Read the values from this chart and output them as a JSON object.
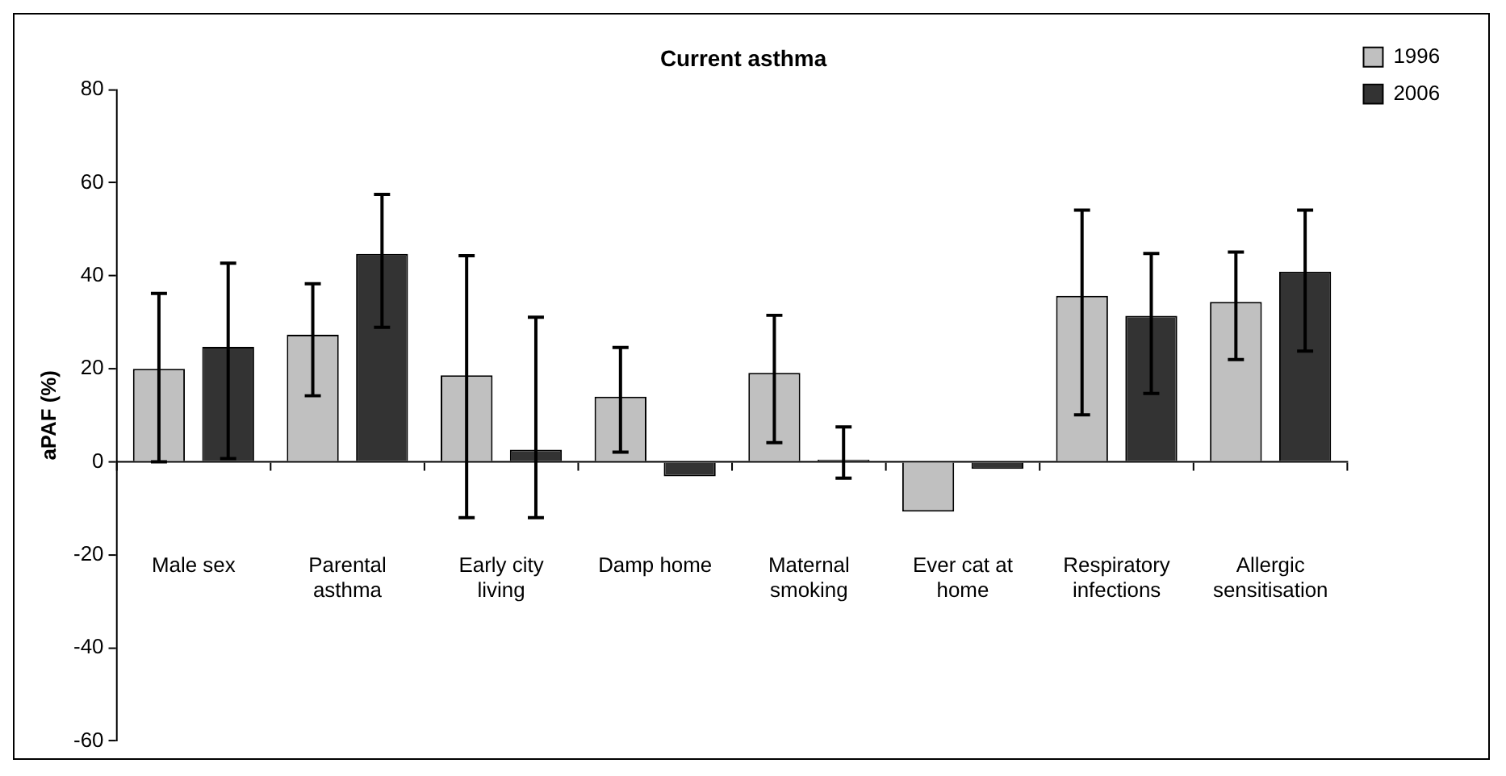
{
  "chart_data": {
    "type": "bar",
    "title": "Current asthma",
    "ylabel": "aPAF (%)",
    "categories": [
      "Male sex",
      "Parental asthma",
      "Early city living",
      "Damp home",
      "Maternal smoking",
      "Ever cat at home",
      "Respiratory infections",
      "Allergic sensitisation"
    ],
    "series": [
      {
        "name": "1996",
        "color": "#c0c0c0",
        "values": [
          20,
          27.3,
          18.6,
          14,
          19.1,
          -10.7,
          35.7,
          34.4
        ],
        "errors": [
          [
            0,
            36.2
          ],
          [
            14.2,
            38.3
          ],
          [
            -12,
            44.3
          ],
          [
            2.1,
            24.6
          ],
          [
            4.1,
            31.5
          ],
          null,
          [
            10.1,
            54.1
          ],
          [
            22,
            45.1
          ]
        ]
      },
      {
        "name": "2006",
        "color": "#333333",
        "values": [
          24.7,
          44.7,
          2.6,
          -3.1,
          0.5,
          -1.5,
          31.4,
          40.9
        ],
        "errors": [
          [
            0.7,
            42.7
          ],
          [
            28.9,
            57.5
          ],
          [
            -12,
            31.1
          ],
          null,
          [
            -3.5,
            7.5
          ],
          null,
          [
            14.7,
            44.8
          ],
          [
            23.8,
            54.1
          ]
        ]
      }
    ],
    "ylim": [
      -60,
      80
    ],
    "yticks": [
      -60,
      -40,
      -20,
      0,
      20,
      40,
      60,
      80
    ],
    "legend": "top right"
  }
}
